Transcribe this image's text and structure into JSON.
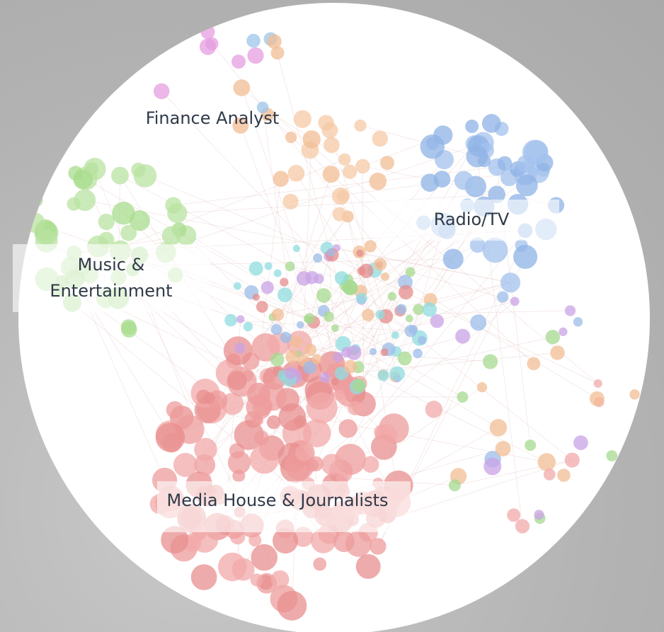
{
  "clusters": [
    {
      "lines": [
        "Finance Analyst"
      ]
    },
    {
      "lines": [
        "Radio/TV"
      ]
    },
    {
      "lines": [
        "Music &",
        "Entertainment"
      ]
    },
    {
      "lines": [
        "Media House & Journalists"
      ]
    }
  ]
}
